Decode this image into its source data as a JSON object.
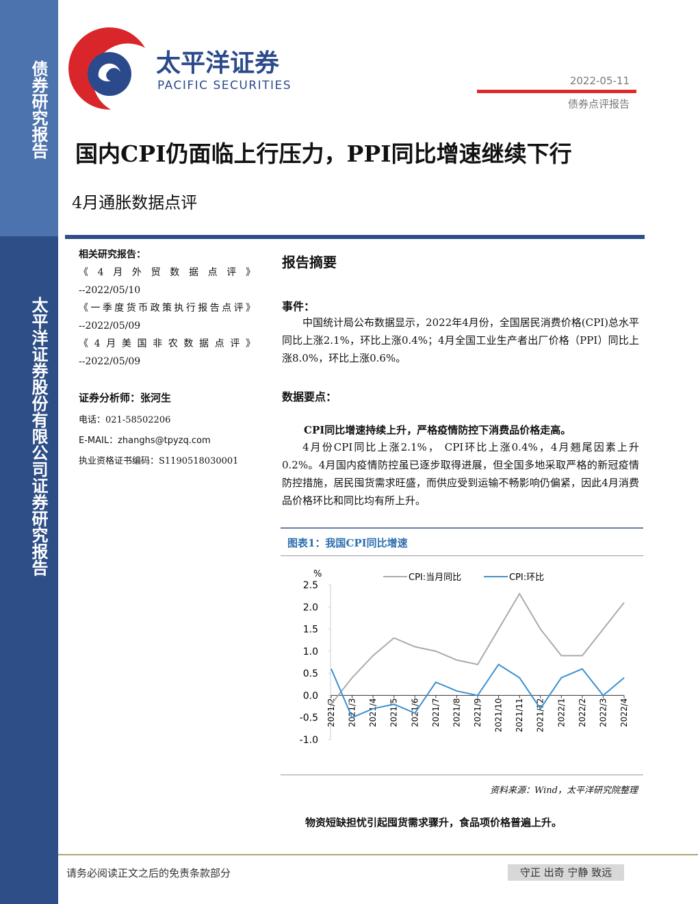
{
  "sidebar": {
    "top": "债券研究报告",
    "bottom": "太平洋证券股份有限公司证券研究报告"
  },
  "header": {
    "logo_cn": "太平洋证券",
    "logo_en": "PACIFIC SECURITIES",
    "date": "2022-05-11",
    "report_type": "债券点评报告",
    "title": "国内CPI仍面临上行压力，PPI同比增速继续下行",
    "subtitle": "4月通胀数据点评"
  },
  "related": {
    "heading": "相关研究报告：",
    "items": [
      {
        "title": "《4月外贸数据点评》",
        "date": "--2022/05/10"
      },
      {
        "title": "《一季度货币政策执行报告点评》",
        "date": "--2022/05/09"
      },
      {
        "title": "《4月美国非农数据点评》",
        "date": "--2022/05/09"
      }
    ]
  },
  "analyst": {
    "heading": "证券分析师：张河生",
    "phone": "电话：021-58502206",
    "email": "E-MAIL：zhanghs@tpyzq.com",
    "cert": "执业资格证书编码：S1190518030001"
  },
  "summary": {
    "heading": "报告摘要",
    "event_heading": "事件：",
    "event_text": "中国统计局公布数据显示，2022年4月份，全国居民消费价格(CPI)总水平同比上涨2.1%，环比上涨0.4%；4月全国工业生产者出厂价格（PPI）同比上涨8.0%，环比上涨0.6%。",
    "points_heading": "数据要点：",
    "point1_heading": "CPI同比增速持续上升，严格疫情防控下消费品价格走高。",
    "point1_text": "4月份CPI同比上涨2.1%， CPI环比上涨0.4%，4月翘尾因素上升0.2%。4月国内疫情防控虽已逐步取得进展，但全国多地采取严格的新冠疫情防控措施，居民囤货需求旺盛，而供应受到运输不畅影响仍偏紧，因此4月消费品价格环比和同比均有所上升。",
    "source": "资料来源：Wind，太平洋研究院整理",
    "point2_heading": "物资短缺担忧引起囤货需求骤升，食品项价格普遍上升。"
  },
  "footer": {
    "disclaimer": "请务必阅读正文之后的免责条款部分",
    "motto": "守正 出奇 宁静 致远"
  },
  "chart_data": {
    "type": "line",
    "title": "图表1：我国CPI同比增速",
    "y_label": "%",
    "categories": [
      "2021/2",
      "2021/3",
      "2021/4",
      "2021/5",
      "2021/6",
      "2021/7",
      "2021/8",
      "2021/9",
      "2021/10",
      "2021/11",
      "2021/12",
      "2022/1",
      "2022/2",
      "2022/3",
      "2022/4"
    ],
    "series": [
      {
        "name": "CPI:当月同比",
        "color": "#aaaaaa",
        "values": [
          -0.2,
          0.4,
          0.9,
          1.3,
          1.1,
          1.0,
          0.8,
          0.7,
          1.5,
          2.3,
          1.5,
          0.9,
          0.9,
          1.5,
          2.1
        ]
      },
      {
        "name": "CPI:环比",
        "color": "#3a8fd0",
        "values": [
          0.6,
          -0.5,
          -0.3,
          -0.2,
          -0.4,
          0.3,
          0.1,
          0.0,
          0.7,
          0.4,
          -0.3,
          0.4,
          0.6,
          0.0,
          0.4
        ]
      }
    ],
    "ylim": [
      -1.0,
      2.5
    ],
    "yticks": [
      {
        "value": -1.0,
        "label": "-1.0"
      },
      {
        "value": -0.5,
        "label": "-0.5"
      },
      {
        "value": 0.0,
        "label": "0.0"
      },
      {
        "value": 0.5,
        "label": "0.5"
      },
      {
        "value": 1.0,
        "label": "1.0"
      },
      {
        "value": 1.5,
        "label": "1.5"
      },
      {
        "value": 2.0,
        "label": "2.0"
      },
      {
        "value": 2.5,
        "label": "2.5"
      }
    ],
    "legend": "top"
  }
}
